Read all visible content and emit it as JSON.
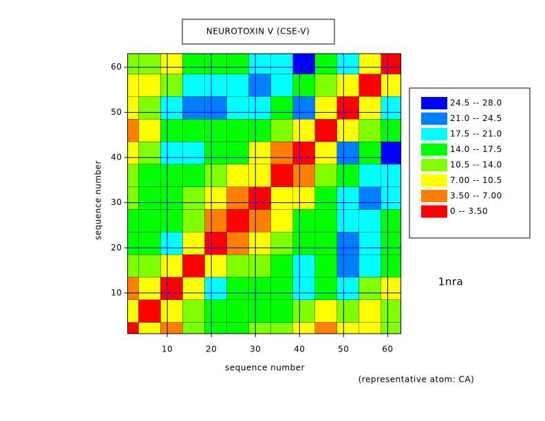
{
  "chart_data": {
    "type": "contour",
    "title": "NEUROTOXIN V (CSE-V)",
    "x_label": "sequence number",
    "y_label": "sequence number",
    "annotation": "1nra",
    "note": "(representative atom: CA)",
    "xlim": [
      1,
      63
    ],
    "ylim": [
      1,
      63
    ],
    "xticks": [
      10,
      20,
      30,
      40,
      50,
      60
    ],
    "yticks": [
      10,
      20,
      30,
      40,
      50,
      60
    ],
    "grid": true,
    "grid_color": "#0000ff",
    "x": [
      1,
      6,
      11,
      16,
      21,
      26,
      31,
      36,
      41,
      46,
      51,
      56,
      61
    ],
    "y": [
      1,
      6,
      11,
      16,
      21,
      26,
      31,
      36,
      41,
      46,
      51,
      56,
      61
    ],
    "z": [
      [
        0,
        9,
        6,
        12,
        15,
        14,
        13,
        12,
        10,
        6,
        9,
        8,
        11
      ],
      [
        9,
        0,
        8,
        11,
        14,
        17,
        15,
        15,
        13,
        9,
        12,
        10,
        13
      ],
      [
        6,
        8,
        0,
        9,
        18,
        16,
        14,
        17,
        18,
        14,
        20,
        12,
        10
      ],
      [
        12,
        11,
        9,
        0,
        9,
        13,
        13,
        15,
        19,
        16,
        22,
        18,
        16
      ],
      [
        15,
        14,
        18,
        9,
        0,
        6,
        8,
        12,
        16,
        17,
        21,
        19,
        15
      ],
      [
        14,
        17,
        16,
        13,
        6,
        0,
        6,
        9,
        14,
        16,
        20,
        18,
        17
      ],
      [
        13,
        15,
        14,
        13,
        8,
        6,
        0,
        7,
        10,
        14,
        18,
        22,
        20
      ],
      [
        12,
        15,
        17,
        15,
        12,
        9,
        7,
        0,
        6,
        11,
        16,
        20,
        19
      ],
      [
        10,
        13,
        18,
        19,
        16,
        14,
        10,
        6,
        0,
        7,
        22,
        17,
        25
      ],
      [
        6,
        9,
        14,
        16,
        17,
        16,
        14,
        11,
        7,
        0,
        9,
        13,
        15
      ],
      [
        9,
        12,
        20,
        22,
        21,
        20,
        18,
        16,
        22,
        9,
        0,
        9,
        18
      ],
      [
        8,
        10,
        12,
        18,
        19,
        18,
        22,
        20,
        17,
        13,
        9,
        0,
        10
      ],
      [
        11,
        13,
        10,
        16,
        15,
        17,
        20,
        19,
        25,
        15,
        18,
        10,
        0
      ]
    ],
    "levels": [
      {
        "label": "24.5  --  28.0",
        "min": 24.5,
        "max": 28,
        "color": "#0000ff"
      },
      {
        "label": "21.0  --  24.5",
        "min": 21,
        "max": 24.5,
        "color": "#0080ff"
      },
      {
        "label": "17.5  --  21.0",
        "min": 17.5,
        "max": 21,
        "color": "#00ffff"
      },
      {
        "label": "14.0  --  17.5",
        "min": 14,
        "max": 17.5,
        "color": "#00ff00"
      },
      {
        "label": "10.5  --  14.0",
        "min": 10.5,
        "max": 14,
        "color": "#80ff00"
      },
      {
        "label": "7.00  --  10.5",
        "min": 7,
        "max": 10.5,
        "color": "#ffff00"
      },
      {
        "label": "3.50  --  7.00",
        "min": 3.5,
        "max": 7,
        "color": "#ff8000"
      },
      {
        "label": "0  --  3.50",
        "min": 0,
        "max": 3.5,
        "color": "#ff0000"
      }
    ]
  }
}
